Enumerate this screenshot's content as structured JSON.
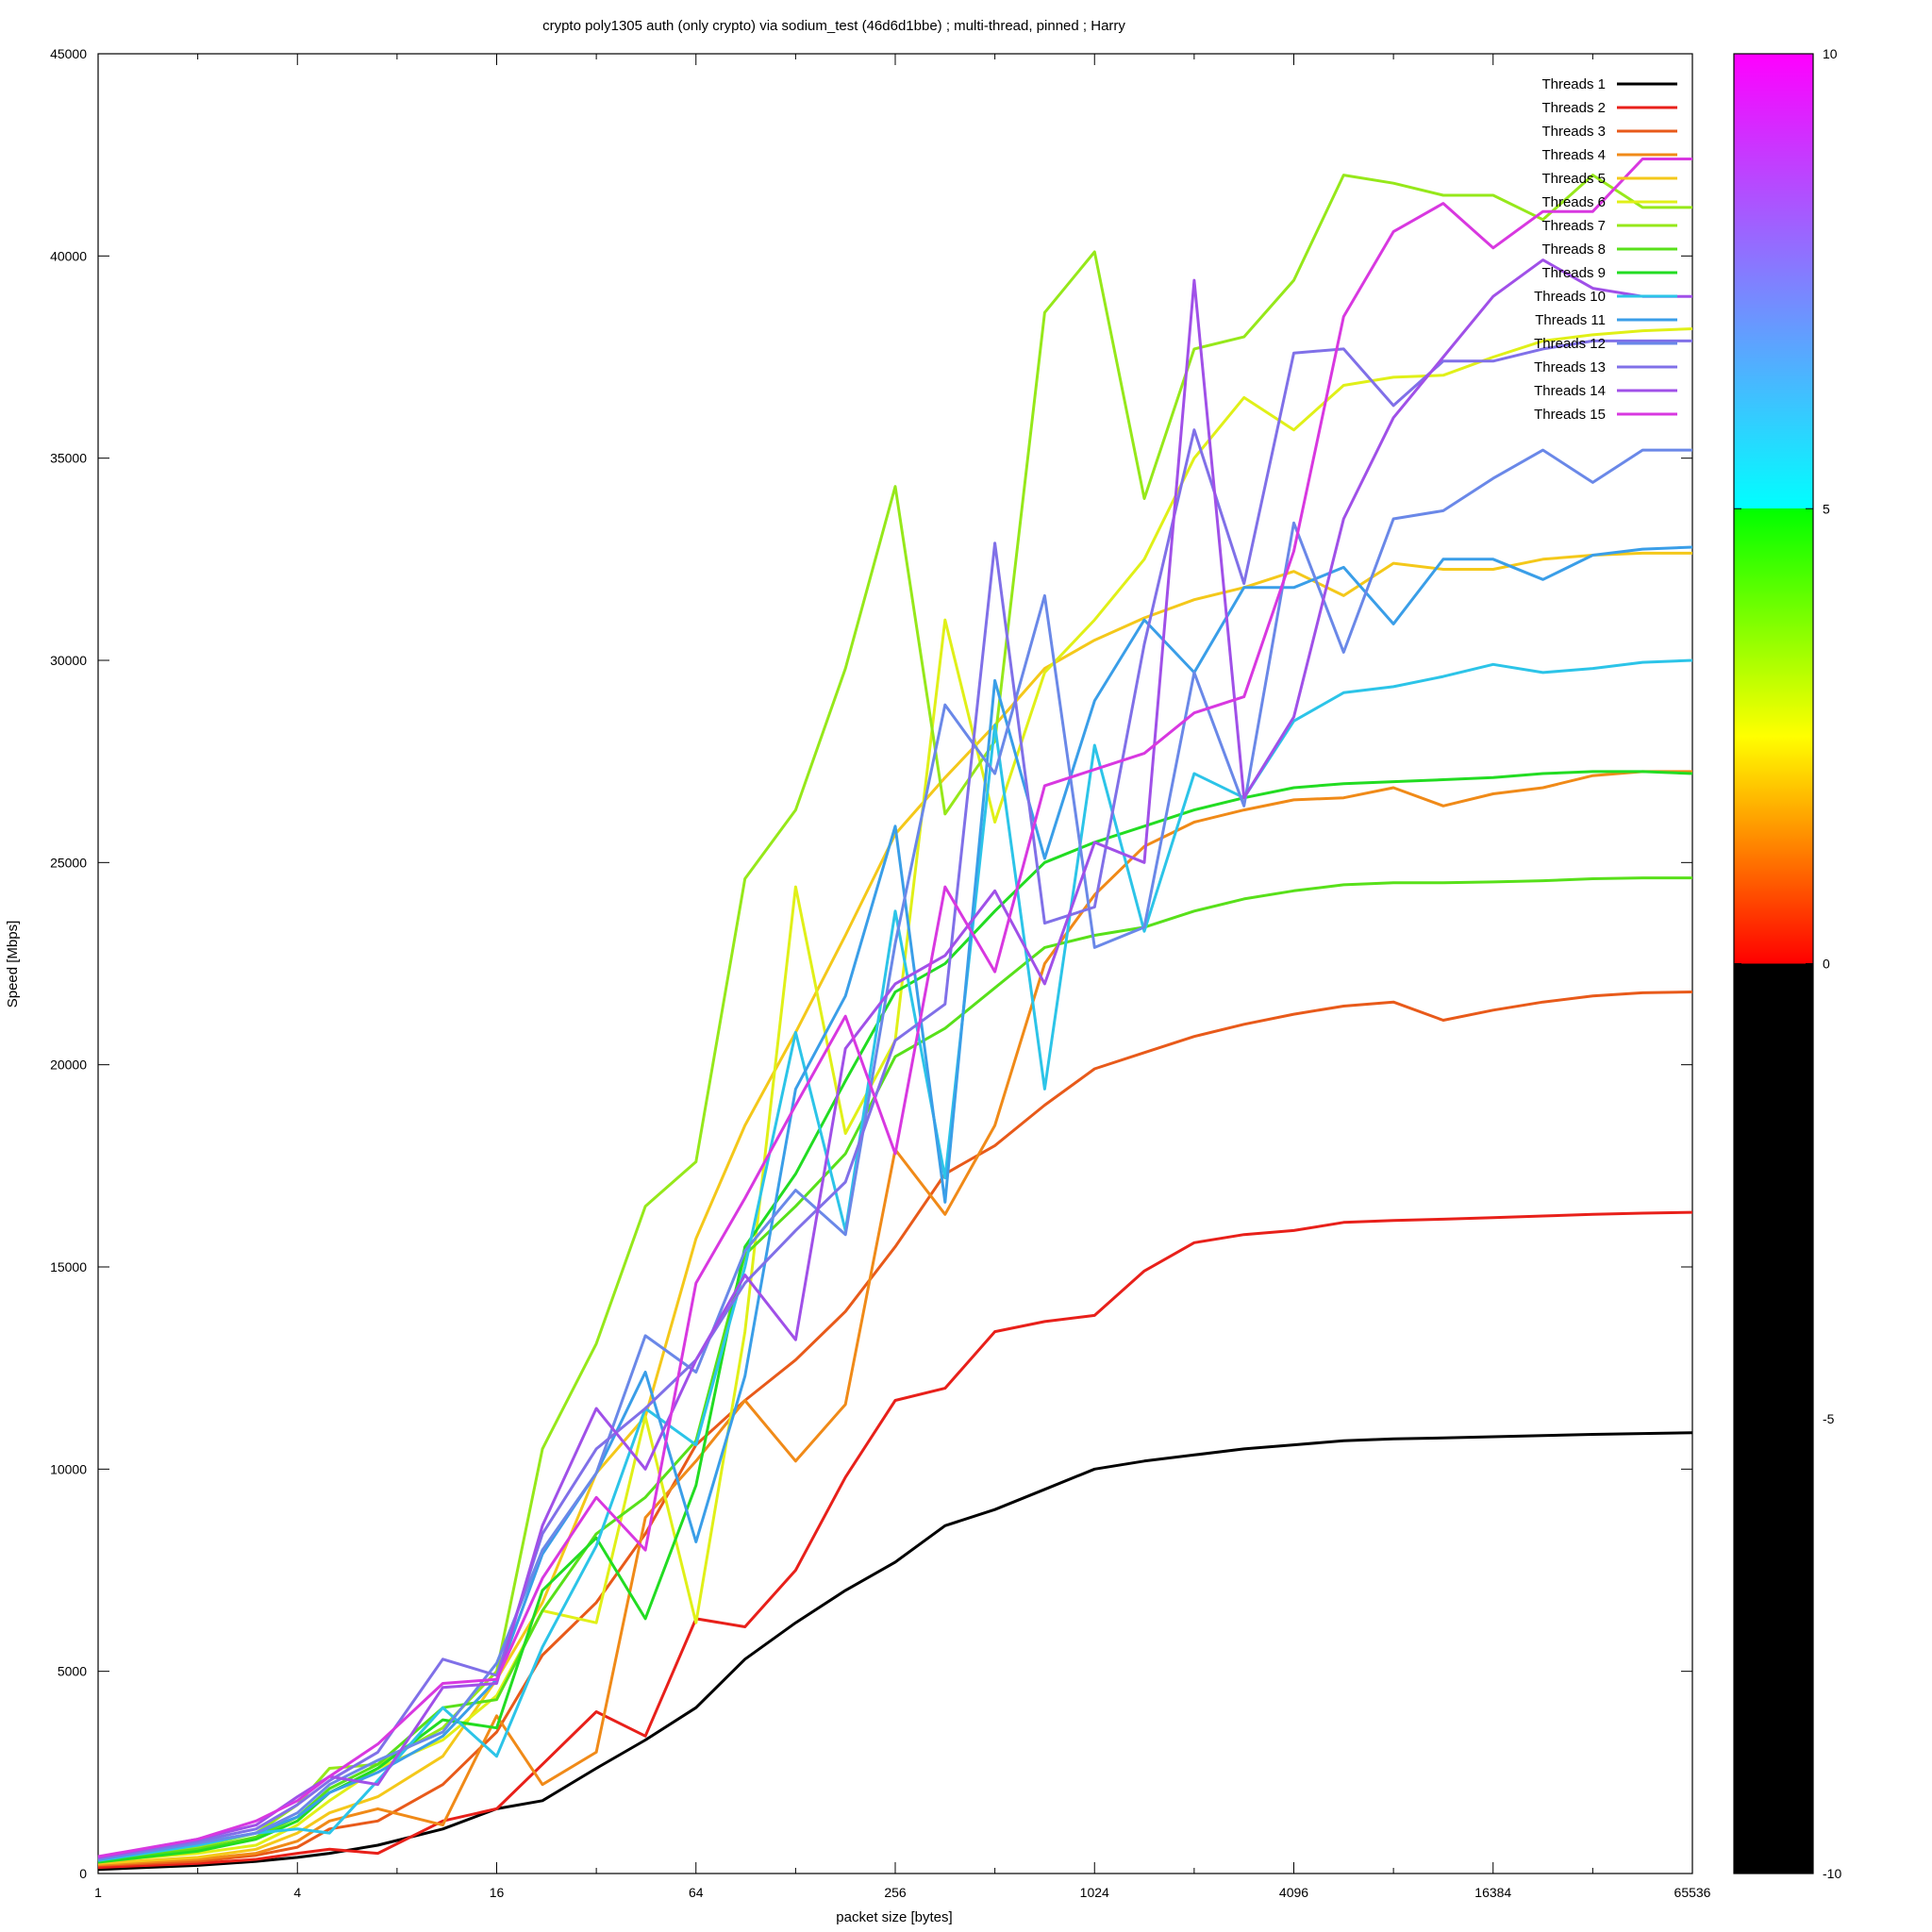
{
  "chart_data": {
    "type": "line",
    "title": "crypto poly1305 auth (only crypto) via sodium_test (46d6d1bbe) ; multi-thread, pinned ; Harry",
    "xlabel": "packet size [bytes]",
    "ylabel": "Speed [Mbps]",
    "x_scale": "log2",
    "xlim": [
      1,
      65536
    ],
    "ylim": [
      0,
      45000
    ],
    "x_ticks": [
      1,
      4,
      16,
      64,
      256,
      1024,
      4096,
      16384,
      65536
    ],
    "x_tick_labels": [
      "1",
      "4",
      "16",
      "64",
      "256",
      "1024",
      "4096",
      "16384",
      "65536"
    ],
    "y_ticks": [
      0,
      5000,
      10000,
      15000,
      20000,
      25000,
      30000,
      35000,
      40000,
      45000
    ],
    "y_tick_labels": [
      "0",
      "5000",
      "10000",
      "15000",
      "20000",
      "25000",
      "30000",
      "35000",
      "40000",
      "45000"
    ],
    "grid": false,
    "legend_position": "top-right",
    "x": [
      1,
      2,
      3,
      4,
      5,
      7,
      11,
      16,
      22,
      32,
      45,
      64,
      90,
      128,
      181,
      256,
      362,
      512,
      724,
      1024,
      1448,
      2048,
      2896,
      4096,
      5793,
      8192,
      11585,
      16384,
      23170,
      32768,
      46341,
      65536
    ],
    "series": [
      {
        "name": "Threads 1",
        "color": "#000000",
        "values": [
          100,
          200,
          300,
          400,
          500,
          700,
          1100,
          1600,
          1800,
          2600,
          3300,
          4100,
          5300,
          6200,
          7000,
          7700,
          8600,
          9000,
          9500,
          10000,
          10200,
          10350,
          10500,
          10600,
          10700,
          10750,
          10770,
          10800,
          10830,
          10860,
          10880,
          10900
        ]
      },
      {
        "name": "Threads 2",
        "color": "#e8201a",
        "values": [
          150,
          250,
          350,
          500,
          600,
          500,
          1300,
          1600,
          2700,
          4000,
          3400,
          6300,
          6100,
          7500,
          9800,
          11700,
          12000,
          13400,
          13650,
          13800,
          14900,
          15600,
          15800,
          15900,
          16100,
          16150,
          16180,
          16220,
          16260,
          16300,
          16330,
          16350
        ]
      },
      {
        "name": "Threads 3",
        "color": "#e85a1a",
        "values": [
          200,
          300,
          450,
          650,
          1100,
          1300,
          2200,
          3500,
          5400,
          6700,
          8400,
          10600,
          11700,
          12700,
          13900,
          15500,
          17300,
          18000,
          19000,
          19900,
          20300,
          20700,
          21000,
          21250,
          21450,
          21550,
          21100,
          21350,
          21550,
          21700,
          21780,
          21800
        ]
      },
      {
        "name": "Threads 4",
        "color": "#f08a18",
        "values": [
          220,
          350,
          500,
          800,
          1300,
          1600,
          1200,
          3900,
          2200,
          3000,
          8800,
          10200,
          11700,
          10200,
          11600,
          17900,
          16300,
          18500,
          22500,
          24200,
          25400,
          26000,
          26300,
          26550,
          26600,
          26850,
          26400,
          26700,
          26850,
          27150,
          27250,
          27250
        ]
      },
      {
        "name": "Threads 5",
        "color": "#f4c81a",
        "values": [
          250,
          400,
          600,
          1000,
          1500,
          1900,
          2900,
          4800,
          6700,
          9900,
          11300,
          15700,
          18500,
          20800,
          23200,
          25700,
          27100,
          28400,
          29800,
          30500,
          31050,
          31500,
          31800,
          32200,
          31600,
          32400,
          32250,
          32250,
          32500,
          32600,
          32650,
          32650
        ]
      },
      {
        "name": "Threads 6",
        "color": "#e0f018",
        "values": [
          300,
          500,
          700,
          1200,
          1800,
          2600,
          3300,
          4400,
          6500,
          6200,
          11300,
          6200,
          13400,
          24400,
          18300,
          20600,
          31000,
          26000,
          29700,
          31000,
          32500,
          35000,
          36500,
          35700,
          36800,
          37000,
          37050,
          37500,
          37900,
          38050,
          38150,
          38200
        ]
      },
      {
        "name": "Threads 7",
        "color": "#96e81a",
        "values": [
          350,
          650,
          1000,
          1700,
          2600,
          2700,
          3600,
          5000,
          10500,
          13100,
          16500,
          17600,
          24600,
          26300,
          29800,
          34300,
          26200,
          28000,
          38600,
          40100,
          34000,
          37700,
          38000,
          39400,
          42000,
          41800,
          41500,
          41500,
          40900,
          42000,
          41200,
          41200
        ]
      },
      {
        "name": "Threads 8",
        "color": "#58e01a",
        "values": [
          300,
          600,
          900,
          1400,
          2100,
          2700,
          4100,
          4300,
          6500,
          8400,
          9300,
          10700,
          15300,
          16500,
          17800,
          20200,
          20900,
          21900,
          22900,
          23200,
          23400,
          23800,
          24100,
          24300,
          24450,
          24500,
          24500,
          24520,
          24550,
          24600,
          24620,
          24620
        ]
      },
      {
        "name": "Threads 9",
        "color": "#22dc22",
        "values": [
          280,
          550,
          850,
          1300,
          2000,
          2600,
          3800,
          3600,
          7000,
          8300,
          6300,
          9600,
          15500,
          17300,
          19600,
          21800,
          22500,
          23800,
          25000,
          25500,
          25900,
          26300,
          26600,
          26850,
          26950,
          27000,
          27050,
          27100,
          27200,
          27250,
          27250,
          27200
        ]
      },
      {
        "name": "Threads 10",
        "color": "#2cc4e8",
        "values": [
          320,
          700,
          1000,
          1100,
          1000,
          2300,
          4100,
          2900,
          5600,
          8100,
          11500,
          10600,
          15000,
          20800,
          15900,
          23800,
          17200,
          28400,
          19400,
          27900,
          23300,
          27200,
          26600,
          28500,
          29200,
          29350,
          29600,
          29900,
          29700,
          29800,
          29950,
          30000
        ]
      },
      {
        "name": "Threads 11",
        "color": "#3a9ee8",
        "values": [
          340,
          750,
          1000,
          1400,
          2000,
          2500,
          3400,
          4800,
          7900,
          9900,
          12400,
          8200,
          12300,
          19400,
          21700,
          25900,
          16600,
          29500,
          25100,
          29000,
          31000,
          29700,
          31800,
          31800,
          32300,
          30900,
          32500,
          32500,
          32000,
          32600,
          32750,
          32800
        ]
      },
      {
        "name": "Threads 12",
        "color": "#6a88e8",
        "values": [
          360,
          750,
          1000,
          1500,
          2200,
          2800,
          3500,
          5200,
          8000,
          9900,
          13300,
          12400,
          15400,
          16900,
          15800,
          23000,
          28900,
          27200,
          31600,
          22900,
          23400,
          29700,
          26400,
          33400,
          30200,
          33500,
          33700,
          34500,
          35200,
          34400,
          35200,
          35200
        ]
      },
      {
        "name": "Threads 13",
        "color": "#8070e8",
        "values": [
          380,
          800,
          1100,
          1700,
          2300,
          3000,
          5300,
          4900,
          8400,
          10500,
          11500,
          12700,
          14600,
          15900,
          17100,
          20600,
          21500,
          32900,
          23500,
          23900,
          30400,
          35700,
          31900,
          37600,
          37700,
          36300,
          37400,
          37400,
          37700,
          37900,
          37900,
          37900
        ]
      },
      {
        "name": "Threads 14",
        "color": "#a050e8",
        "values": [
          400,
          850,
          1200,
          1900,
          2400,
          2200,
          4600,
          4700,
          8600,
          11500,
          10000,
          12700,
          14800,
          13200,
          20400,
          22000,
          22700,
          24300,
          22000,
          25500,
          25000,
          39400,
          26600,
          28600,
          33500,
          36000,
          37500,
          39000,
          39900,
          39200,
          39000,
          39000
        ]
      },
      {
        "name": "Threads 15",
        "color": "#d838e0",
        "values": [
          420,
          850,
          1300,
          1800,
          2400,
          3200,
          4700,
          4800,
          7300,
          9300,
          8000,
          14600,
          16700,
          19000,
          21200,
          17800,
          24400,
          22300,
          26900,
          27300,
          27700,
          28700,
          29100,
          32700,
          38500,
          40600,
          41300,
          40200,
          41100,
          41100,
          42400,
          42400
        ]
      }
    ],
    "colorbar": {
      "ticks": [
        -10,
        -5,
        0,
        5,
        10
      ],
      "tick_labels": [
        "-10",
        "-5",
        "0",
        "5",
        "10"
      ],
      "range": [
        -10,
        10
      ],
      "stops": [
        {
          "v": -10,
          "color": "#000000"
        },
        {
          "v": 0,
          "color": "#000000"
        },
        {
          "v": 0.001,
          "color": "#ff0000"
        },
        {
          "v": 2.5,
          "color": "#ffff00"
        },
        {
          "v": 5,
          "color": "#00ff00"
        },
        {
          "v": 5.001,
          "color": "#00ffff"
        },
        {
          "v": 7.5,
          "color": "#8080ff"
        },
        {
          "v": 10,
          "color": "#ff00ff"
        }
      ]
    }
  }
}
